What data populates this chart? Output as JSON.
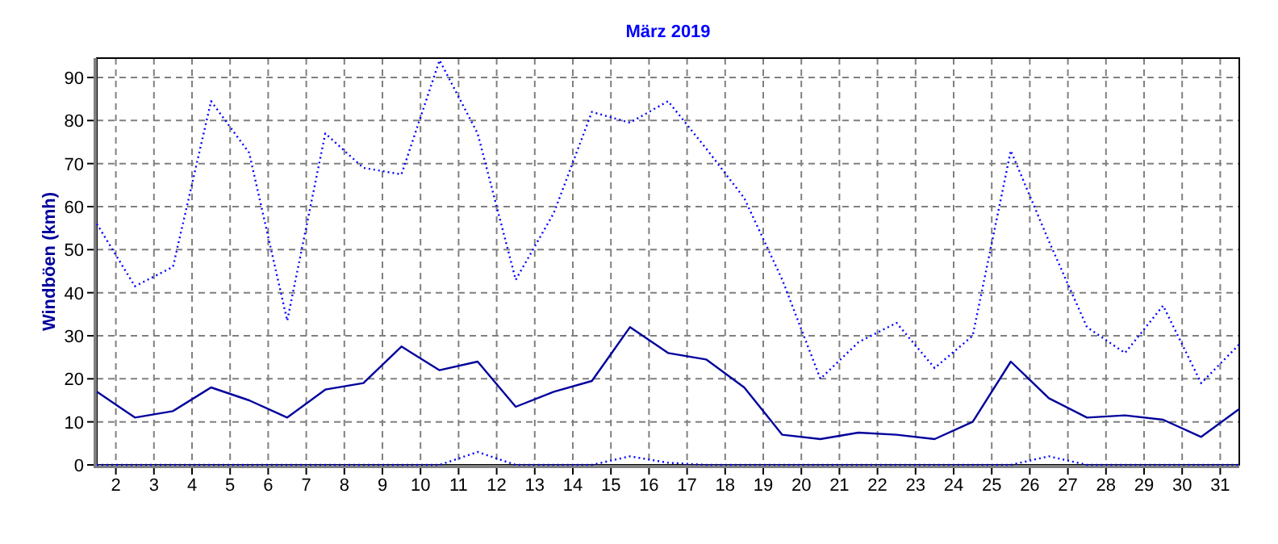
{
  "chart_data": {
    "type": "line",
    "title": "März 2019",
    "ylabel": "Windböen (kmh)",
    "x": [
      1.5,
      2.5,
      3.5,
      4.5,
      5.5,
      6.5,
      7.5,
      8.5,
      9.5,
      10.5,
      11.5,
      12.5,
      13.5,
      14.5,
      15.5,
      16.5,
      17.5,
      18.5,
      19.5,
      20.5,
      21.5,
      22.5,
      23.5,
      24.5,
      25.5,
      26.5,
      27.5,
      28.5,
      29.5,
      30.5,
      31.5
    ],
    "xlim": [
      1.5,
      31.5
    ],
    "xticks": [
      2,
      3,
      4,
      5,
      6,
      7,
      8,
      9,
      10,
      11,
      12,
      13,
      14,
      15,
      16,
      17,
      18,
      19,
      20,
      21,
      22,
      23,
      24,
      25,
      26,
      27,
      28,
      29,
      30,
      31
    ],
    "ylim": [
      0,
      94.5
    ],
    "yticks": [
      0,
      10,
      20,
      30,
      40,
      50,
      60,
      70,
      80,
      90
    ],
    "grid": true,
    "series": [
      {
        "color": "#0000ff",
        "line_style": "dotted",
        "values": [
          56,
          41.5,
          46,
          84.5,
          72.5,
          33.5,
          77,
          69,
          67.5,
          94,
          77,
          43,
          58.5,
          82,
          79.5,
          84.5,
          73.5,
          62,
          43,
          20,
          28.5,
          33,
          22.5,
          30,
          73,
          52,
          32,
          26,
          37,
          19,
          28
        ]
      },
      {
        "color": "#00009c",
        "line_style": "solid",
        "values": [
          17,
          11,
          12.5,
          18,
          15,
          11,
          17.5,
          19,
          27.5,
          22,
          24,
          13.5,
          17,
          19.5,
          32,
          26,
          24.5,
          18,
          7,
          6,
          7.5,
          7,
          6,
          10,
          24,
          15.5,
          11,
          11.5,
          10.5,
          6.5,
          13
        ]
      },
      {
        "color": "#0000ff",
        "line_style": "dotted",
        "values": [
          0,
          0,
          0,
          0,
          0,
          0,
          0,
          0,
          0,
          0,
          3,
          0,
          0,
          0,
          2,
          0.5,
          0,
          0,
          0,
          0,
          0,
          0,
          0,
          0,
          0,
          2,
          0,
          0,
          0,
          0,
          0
        ]
      }
    ]
  }
}
